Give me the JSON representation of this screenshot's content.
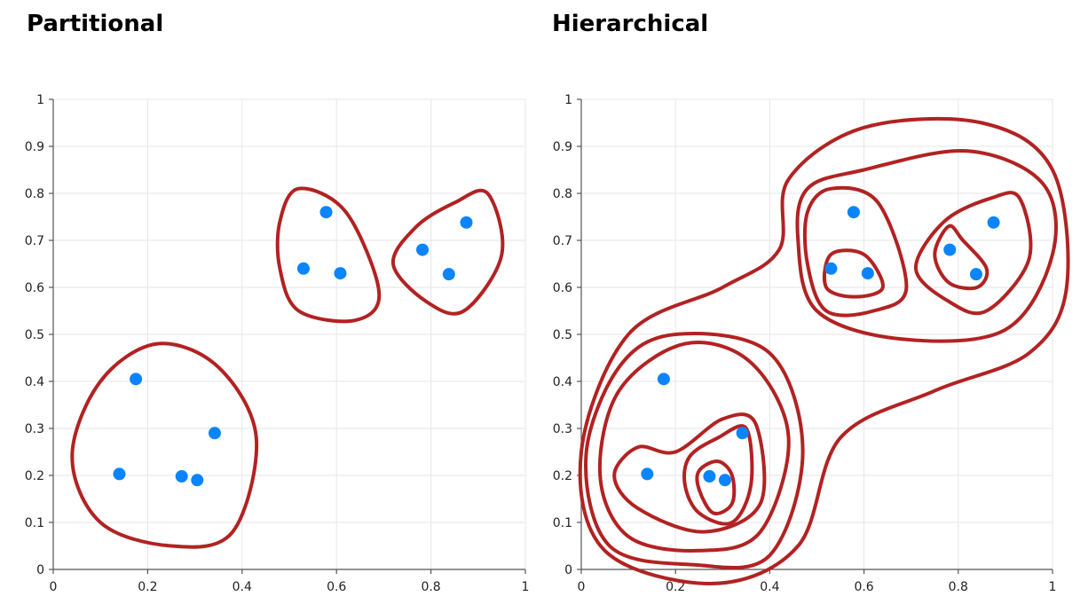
{
  "panels": [
    {
      "title": "Partitional"
    },
    {
      "title": "Hierarchical"
    }
  ],
  "colors": {
    "point": "#0a84ff",
    "contour": "#b22222",
    "grid": "#e6e6e6",
    "axis": "#555555"
  },
  "chart_data": [
    {
      "type": "scatter",
      "title": "Partitional",
      "xlim": [
        0,
        1
      ],
      "ylim": [
        0,
        1
      ],
      "x_ticks": [
        "0",
        "0.2",
        "0.4",
        "0.6",
        "0.8",
        "1"
      ],
      "y_ticks": [
        "0",
        "0.1",
        "0.2",
        "0.3",
        "0.4",
        "0.5",
        "0.6",
        "0.7",
        "0.8",
        "0.9",
        "1"
      ],
      "grid": true,
      "points": [
        {
          "x": 0.175,
          "y": 0.405
        },
        {
          "x": 0.14,
          "y": 0.203
        },
        {
          "x": 0.272,
          "y": 0.198
        },
        {
          "x": 0.305,
          "y": 0.19
        },
        {
          "x": 0.342,
          "y": 0.29
        },
        {
          "x": 0.578,
          "y": 0.76
        },
        {
          "x": 0.53,
          "y": 0.64
        },
        {
          "x": 0.608,
          "y": 0.63
        },
        {
          "x": 0.782,
          "y": 0.68
        },
        {
          "x": 0.838,
          "y": 0.628
        },
        {
          "x": 0.875,
          "y": 0.738
        }
      ],
      "contours": [
        [
          [
            0.22,
            0.48
          ],
          [
            0.35,
            0.43
          ],
          [
            0.43,
            0.28
          ],
          [
            0.38,
            0.08
          ],
          [
            0.25,
            0.05
          ],
          [
            0.1,
            0.1
          ],
          [
            0.04,
            0.24
          ],
          [
            0.1,
            0.4
          ]
        ],
        [
          [
            0.52,
            0.81
          ],
          [
            0.62,
            0.76
          ],
          [
            0.69,
            0.59
          ],
          [
            0.64,
            0.53
          ],
          [
            0.52,
            0.55
          ],
          [
            0.48,
            0.64
          ],
          [
            0.48,
            0.74
          ]
        ],
        [
          [
            0.92,
            0.8
          ],
          [
            0.95,
            0.67
          ],
          [
            0.87,
            0.55
          ],
          [
            0.79,
            0.57
          ],
          [
            0.72,
            0.65
          ],
          [
            0.77,
            0.73
          ],
          [
            0.85,
            0.78
          ]
        ]
      ]
    },
    {
      "type": "scatter",
      "title": "Hierarchical",
      "xlim": [
        0,
        1
      ],
      "ylim": [
        0,
        1
      ],
      "x_ticks": [
        "0",
        "0.2",
        "0.4",
        "0.6",
        "0.8",
        "1"
      ],
      "y_ticks": [
        "0",
        "0.1",
        "0.2",
        "0.3",
        "0.4",
        "0.5",
        "0.6",
        "0.7",
        "0.8",
        "0.9",
        "1"
      ],
      "grid": true,
      "points": [
        {
          "x": 0.175,
          "y": 0.405
        },
        {
          "x": 0.14,
          "y": 0.203
        },
        {
          "x": 0.272,
          "y": 0.198
        },
        {
          "x": 0.305,
          "y": 0.19
        },
        {
          "x": 0.342,
          "y": 0.29
        },
        {
          "x": 0.578,
          "y": 0.76
        },
        {
          "x": 0.53,
          "y": 0.64
        },
        {
          "x": 0.608,
          "y": 0.63
        },
        {
          "x": 0.782,
          "y": 0.68
        },
        {
          "x": 0.838,
          "y": 0.628
        },
        {
          "x": 0.875,
          "y": 0.738
        }
      ],
      "contours": [
        [
          [
            0.25,
            0.17
          ],
          [
            0.28,
            0.12
          ],
          [
            0.32,
            0.14
          ],
          [
            0.32,
            0.2
          ],
          [
            0.29,
            0.23
          ],
          [
            0.25,
            0.21
          ]
        ],
        [
          [
            0.22,
            0.18
          ],
          [
            0.25,
            0.12
          ],
          [
            0.32,
            0.1
          ],
          [
            0.36,
            0.18
          ],
          [
            0.35,
            0.3
          ],
          [
            0.29,
            0.28
          ],
          [
            0.23,
            0.24
          ]
        ],
        [
          [
            0.07,
            0.2
          ],
          [
            0.12,
            0.13
          ],
          [
            0.26,
            0.08
          ],
          [
            0.38,
            0.14
          ],
          [
            0.37,
            0.31
          ],
          [
            0.3,
            0.32
          ],
          [
            0.2,
            0.25
          ],
          [
            0.12,
            0.26
          ]
        ],
        [
          [
            0.22,
            0.48
          ],
          [
            0.36,
            0.44
          ],
          [
            0.44,
            0.28
          ],
          [
            0.38,
            0.08
          ],
          [
            0.25,
            0.04
          ],
          [
            0.1,
            0.07
          ],
          [
            0.04,
            0.2
          ],
          [
            0.08,
            0.38
          ]
        ],
        [
          [
            0.2,
            0.5
          ],
          [
            0.4,
            0.46
          ],
          [
            0.47,
            0.25
          ],
          [
            0.4,
            0.03
          ],
          [
            0.24,
            0.01
          ],
          [
            0.06,
            0.05
          ],
          [
            0.01,
            0.24
          ],
          [
            0.08,
            0.43
          ]
        ],
        [
          [
            0.53,
            0.67
          ],
          [
            0.6,
            0.67
          ],
          [
            0.64,
            0.6
          ],
          [
            0.58,
            0.58
          ],
          [
            0.52,
            0.6
          ]
        ],
        [
          [
            0.53,
            0.81
          ],
          [
            0.63,
            0.78
          ],
          [
            0.69,
            0.6
          ],
          [
            0.62,
            0.55
          ],
          [
            0.52,
            0.55
          ],
          [
            0.48,
            0.65
          ],
          [
            0.48,
            0.76
          ]
        ],
        [
          [
            0.78,
            0.73
          ],
          [
            0.81,
            0.7
          ],
          [
            0.86,
            0.64
          ],
          [
            0.84,
            0.6
          ],
          [
            0.78,
            0.61
          ],
          [
            0.75,
            0.67
          ]
        ],
        [
          [
            0.93,
            0.79
          ],
          [
            0.95,
            0.66
          ],
          [
            0.86,
            0.55
          ],
          [
            0.78,
            0.57
          ],
          [
            0.71,
            0.64
          ],
          [
            0.77,
            0.74
          ],
          [
            0.87,
            0.79
          ]
        ],
        [
          [
            0.6,
            0.85
          ],
          [
            0.82,
            0.89
          ],
          [
            0.98,
            0.82
          ],
          [
            1.0,
            0.67
          ],
          [
            0.9,
            0.51
          ],
          [
            0.68,
            0.49
          ],
          [
            0.5,
            0.55
          ],
          [
            0.46,
            0.7
          ],
          [
            0.48,
            0.81
          ]
        ],
        [
          [
            0.44,
            0.83
          ],
          [
            0.6,
            0.94
          ],
          [
            0.85,
            0.95
          ],
          [
            1.0,
            0.85
          ],
          [
            1.03,
            0.6
          ],
          [
            0.95,
            0.46
          ],
          [
            0.75,
            0.38
          ],
          [
            0.55,
            0.28
          ],
          [
            0.46,
            0.05
          ],
          [
            0.28,
            -0.03
          ],
          [
            0.05,
            0.04
          ],
          [
            0.0,
            0.25
          ],
          [
            0.1,
            0.5
          ],
          [
            0.3,
            0.6
          ],
          [
            0.42,
            0.68
          ]
        ]
      ]
    }
  ]
}
